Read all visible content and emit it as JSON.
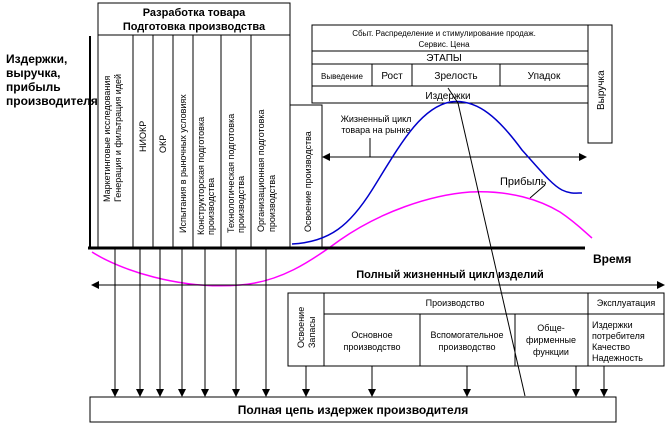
{
  "y_axis_label": [
    "Издержки,",
    "выручка,",
    "прибыль",
    "производителя"
  ],
  "x_axis_label": "Время",
  "product_dev": {
    "title": [
      "Разработка товара",
      "Подготовка производства"
    ],
    "columns": [
      [
        "Маркетинговые исследования",
        "Генерация и фильтрация идей"
      ],
      [
        "НИОКР"
      ],
      [
        "ОКР"
      ],
      [
        "Испытания в рыночных условиях"
      ],
      [
        "Конструкторская подготовка",
        "производства"
      ],
      [
        "Технологическая подготовка",
        "производства"
      ],
      [
        "Организационная подготовка",
        "производства"
      ]
    ],
    "mastering": "Освоение производства"
  },
  "market_box": {
    "title": [
      "Сбыт.  Распределение и стимулирование продаж.",
      "Сервис. Цена"
    ],
    "stages_label": "ЭТАПЫ",
    "stages": [
      "Выведение",
      "Рост",
      "Зрелость",
      "Упадок"
    ],
    "costs": "Издержки",
    "revenue": "Выручка"
  },
  "market_cycle_label": [
    "Жизненный цикл",
    "товара на рынке"
  ],
  "profit_label": "Прибыль",
  "full_cycle_label": "Полный жизненный цикл изделий",
  "bottom": {
    "mastering_stock": [
      "Освоение",
      "Запасы"
    ],
    "production": "Производство",
    "main": [
      "Основное",
      "производство"
    ],
    "auxiliary": [
      "Вспомогательное",
      "производство"
    ],
    "general": [
      "Обще-",
      "фирменные",
      "функции"
    ],
    "exploitation": "Эксплуатация",
    "consumer": [
      "Издержки",
      "потребителя",
      "Качество",
      "Надежность"
    ]
  },
  "cost_chain": "Полная цепь издержек производителя",
  "colors": {
    "revenue_curve": "#0000cc",
    "profit_curve": "#ff00ff"
  }
}
